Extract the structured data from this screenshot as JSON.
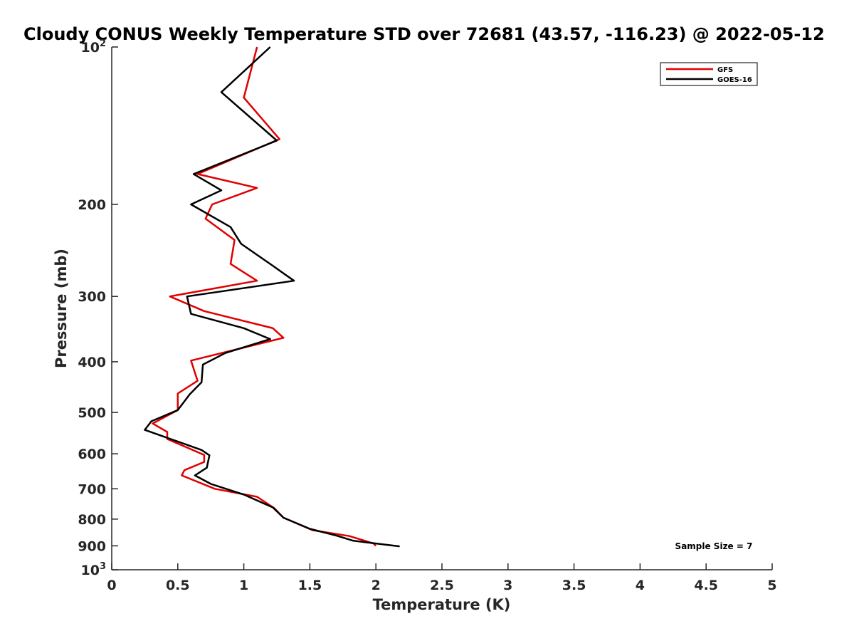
{
  "chart_data": {
    "type": "line",
    "title": "Cloudy CONUS Weekly Temperature STD over 72681 (43.57, -116.23) @ 2022-05-12",
    "xlabel": "Temperature (K)",
    "ylabel": "Pressure (mb)",
    "xlim": [
      0,
      5
    ],
    "ylim": [
      100,
      1000
    ],
    "yscale": "log",
    "y_reversed": true,
    "grid": false,
    "legend_position": "top-right",
    "x_ticks": [
      0,
      0.5,
      1,
      1.5,
      2,
      2.5,
      3,
      3.5,
      4,
      4.5,
      5
    ],
    "x_tick_labels": [
      "0",
      "0.5",
      "1",
      "1.5",
      "2",
      "2.5",
      "3",
      "3.5",
      "4",
      "4.5",
      "5"
    ],
    "y_ticks": [
      100,
      200,
      300,
      400,
      500,
      600,
      700,
      800,
      900,
      1000
    ],
    "y_tick_labels": [
      {
        "base": "10",
        "exp": "2"
      },
      {
        "base": "200",
        "exp": ""
      },
      {
        "base": "300",
        "exp": ""
      },
      {
        "base": "400",
        "exp": ""
      },
      {
        "base": "500",
        "exp": ""
      },
      {
        "base": "600",
        "exp": ""
      },
      {
        "base": "700",
        "exp": ""
      },
      {
        "base": "800",
        "exp": ""
      },
      {
        "base": "900",
        "exp": ""
      },
      {
        "base": "10",
        "exp": "3"
      }
    ],
    "annotation": "Sample Size = 7",
    "series": [
      {
        "name": "GFS",
        "color": "#e00000",
        "points": [
          [
            1.1,
            100
          ],
          [
            1.0,
            125
          ],
          [
            1.27,
            150
          ],
          [
            0.65,
            175
          ],
          [
            1.1,
            186
          ],
          [
            0.76,
            200
          ],
          [
            0.71,
            213
          ],
          [
            0.93,
            234
          ],
          [
            0.9,
            260
          ],
          [
            1.1,
            280
          ],
          [
            0.44,
            300
          ],
          [
            0.7,
            320
          ],
          [
            1.22,
            345
          ],
          [
            1.3,
            360
          ],
          [
            0.6,
            398
          ],
          [
            0.65,
            435
          ],
          [
            0.5,
            460
          ],
          [
            0.5,
            495
          ],
          [
            0.31,
            525
          ],
          [
            0.42,
            545
          ],
          [
            0.42,
            562
          ],
          [
            0.7,
            603
          ],
          [
            0.7,
            622
          ],
          [
            0.55,
            645
          ],
          [
            0.53,
            660
          ],
          [
            0.78,
            700
          ],
          [
            1.1,
            725
          ],
          [
            1.23,
            762
          ],
          [
            1.3,
            795
          ],
          [
            1.52,
            840
          ],
          [
            1.8,
            862
          ],
          [
            1.98,
            890
          ],
          [
            2.0,
            900
          ]
        ]
      },
      {
        "name": "GOES-16",
        "color": "#000000",
        "points": [
          [
            1.2,
            100
          ],
          [
            0.83,
            122
          ],
          [
            1.25,
            151
          ],
          [
            0.62,
            175
          ],
          [
            0.83,
            188
          ],
          [
            0.6,
            200
          ],
          [
            0.9,
            221
          ],
          [
            0.98,
            238
          ],
          [
            1.2,
            260
          ],
          [
            1.38,
            280
          ],
          [
            0.57,
            300
          ],
          [
            0.6,
            324
          ],
          [
            1.0,
            345
          ],
          [
            1.2,
            362
          ],
          [
            0.86,
            385
          ],
          [
            0.69,
            405
          ],
          [
            0.68,
            438
          ],
          [
            0.59,
            462
          ],
          [
            0.5,
            495
          ],
          [
            0.3,
            520
          ],
          [
            0.25,
            540
          ],
          [
            0.68,
            590
          ],
          [
            0.74,
            604
          ],
          [
            0.72,
            638
          ],
          [
            0.63,
            660
          ],
          [
            0.75,
            685
          ],
          [
            1.0,
            718
          ],
          [
            1.22,
            760
          ],
          [
            1.3,
            795
          ],
          [
            1.5,
            835
          ],
          [
            1.7,
            860
          ],
          [
            1.83,
            880
          ],
          [
            2.18,
            902
          ]
        ]
      }
    ]
  }
}
